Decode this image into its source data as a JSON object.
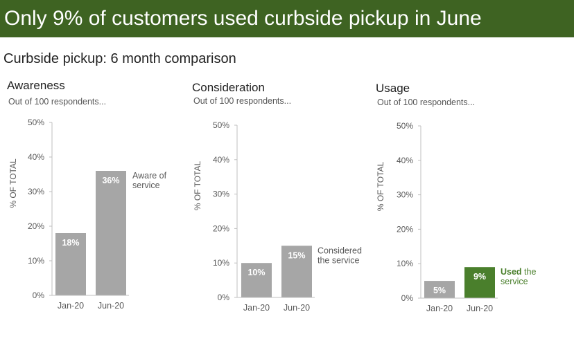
{
  "header": {
    "title": "Only 9% of customers used curbside pickup in June"
  },
  "subtitle": "Curbside pickup: 6 month comparison",
  "colors": {
    "banner": "#3e6322",
    "bar": "#a6a6a6",
    "highlight": "#4a7f2c",
    "highlight_text": "#4a7f2c",
    "axis": "#bfbfbf",
    "tick_text": "#595959"
  },
  "chart_data": [
    {
      "type": "bar",
      "title": "Awareness",
      "subtitle": "Out of 100 respondents...",
      "ylabel": "% OF TOTAL",
      "xlabel": "",
      "ylim": [
        0,
        50
      ],
      "yticks": [
        0,
        10,
        20,
        30,
        40,
        50
      ],
      "ytick_labels": [
        "0%",
        "10%",
        "20%",
        "30%",
        "40%",
        "50%"
      ],
      "categories": [
        "Jan-20",
        "Jun-20"
      ],
      "values": [
        18,
        36
      ],
      "value_labels": [
        "18%",
        "36%"
      ],
      "highlight_index": -1,
      "annotation": {
        "bold": "",
        "rest_line1": "Aware of",
        "rest_line2": "service"
      }
    },
    {
      "type": "bar",
      "title": "Consideration",
      "subtitle": "Out of 100 respondents...",
      "ylabel": "% OF TOTAL",
      "xlabel": "",
      "ylim": [
        0,
        50
      ],
      "yticks": [
        0,
        10,
        20,
        30,
        40,
        50
      ],
      "ytick_labels": [
        "0%",
        "10%",
        "20%",
        "30%",
        "40%",
        "50%"
      ],
      "categories": [
        "Jan-20",
        "Jun-20"
      ],
      "values": [
        10,
        15
      ],
      "value_labels": [
        "10%",
        "15%"
      ],
      "highlight_index": -1,
      "annotation": {
        "bold": "",
        "rest_line1": "Considered",
        "rest_line2": "the service"
      }
    },
    {
      "type": "bar",
      "title": "Usage",
      "subtitle": "Out of 100 respondents...",
      "ylabel": "% OF TOTAL",
      "xlabel": "",
      "ylim": [
        0,
        50
      ],
      "yticks": [
        0,
        10,
        20,
        30,
        40,
        50
      ],
      "ytick_labels": [
        "0%",
        "10%",
        "20%",
        "30%",
        "40%",
        "50%"
      ],
      "categories": [
        "Jan-20",
        "Jun-20"
      ],
      "values": [
        5,
        9
      ],
      "value_labels": [
        "5%",
        "9%"
      ],
      "highlight_index": 1,
      "annotation": {
        "bold": "Used",
        "rest_line1": " the",
        "rest_line2": "service"
      }
    }
  ]
}
